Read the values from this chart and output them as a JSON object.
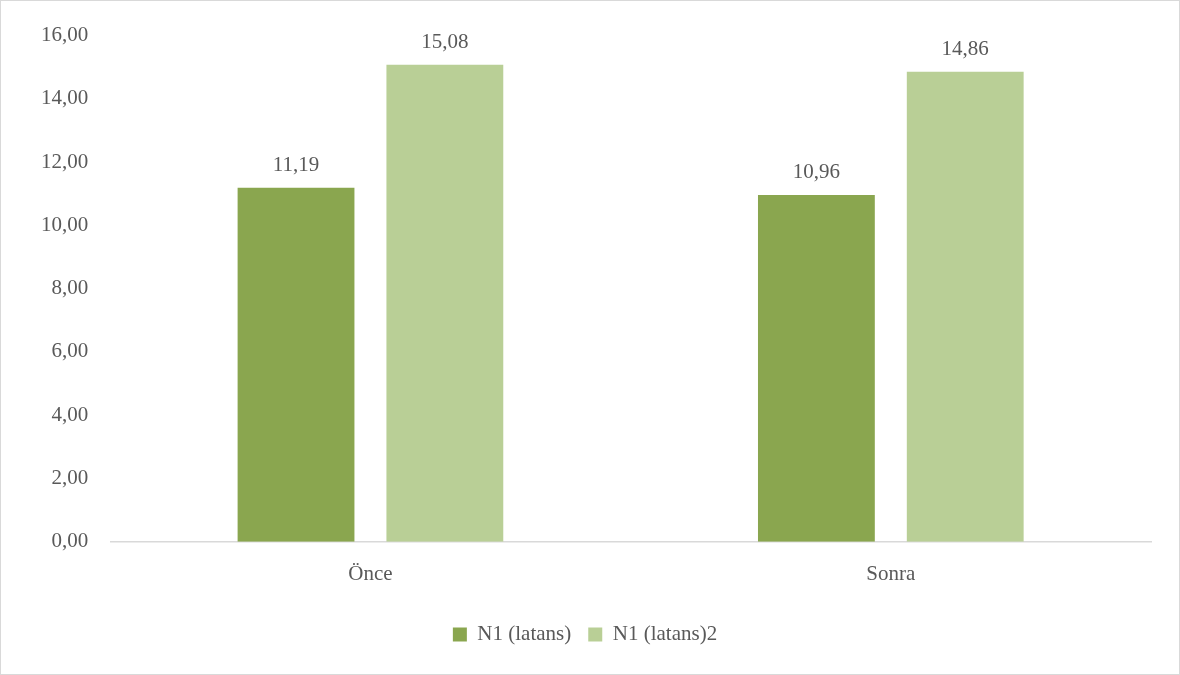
{
  "chart_data": {
    "type": "bar",
    "categories": [
      "Önce",
      "Sonra"
    ],
    "series": [
      {
        "name": "N1 (latans)",
        "color": "#8aa64f",
        "values": [
          11.19,
          10.96
        ],
        "value_labels": [
          "11,19",
          "10,96"
        ]
      },
      {
        "name": "N1 (latans)2",
        "color": "#b9cf96",
        "values": [
          15.08,
          14.86
        ],
        "value_labels": [
          "15,08",
          "14,86"
        ]
      }
    ],
    "ylim": [
      0,
      16
    ],
    "yticks": [
      {
        "value": 0,
        "label": "0,00"
      },
      {
        "value": 2,
        "label": "2,00"
      },
      {
        "value": 4,
        "label": "4,00"
      },
      {
        "value": 6,
        "label": "6,00"
      },
      {
        "value": 8,
        "label": "8,00"
      },
      {
        "value": 10,
        "label": "10,00"
      },
      {
        "value": 12,
        "label": "12,00"
      },
      {
        "value": 14,
        "label": "14,00"
      },
      {
        "value": 16,
        "label": "16,00"
      }
    ],
    "legend": "bottom"
  }
}
